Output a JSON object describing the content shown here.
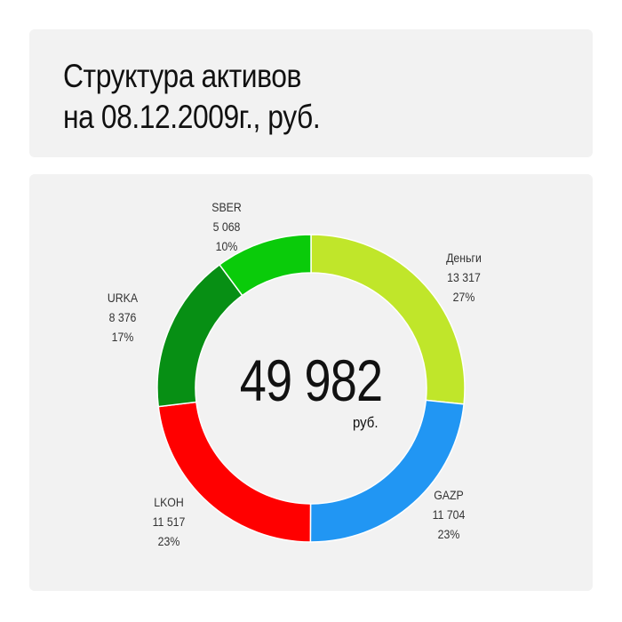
{
  "title": {
    "line1": "Структура активов",
    "line2": "на 08.12.2009г., руб."
  },
  "chart_data": {
    "type": "pie",
    "variant": "donut",
    "title": "Структура активов на 08.12.2009г., руб.",
    "start": "top",
    "direction": "clockwise",
    "total": "49 982",
    "total_unit": "руб.",
    "series": [
      {
        "name": "Деньги",
        "value": 13317,
        "value_label": "13 317",
        "percent_label": "27%",
        "color": "#c0e62a"
      },
      {
        "name": "GAZP",
        "value": 11704,
        "value_label": "11 704",
        "percent_label": "23%",
        "color": "#2196f3"
      },
      {
        "name": "LKOH",
        "value": 11517,
        "value_label": "11 517",
        "percent_label": "23%",
        "color": "#ff0000"
      },
      {
        "name": "URKA",
        "value": 8376,
        "value_label": "8 376",
        "percent_label": "17%",
        "color": "#078f14"
      },
      {
        "name": "SBER",
        "value": 5068,
        "value_label": "5 068",
        "percent_label": "10%",
        "color": "#0acb0a"
      }
    ]
  }
}
